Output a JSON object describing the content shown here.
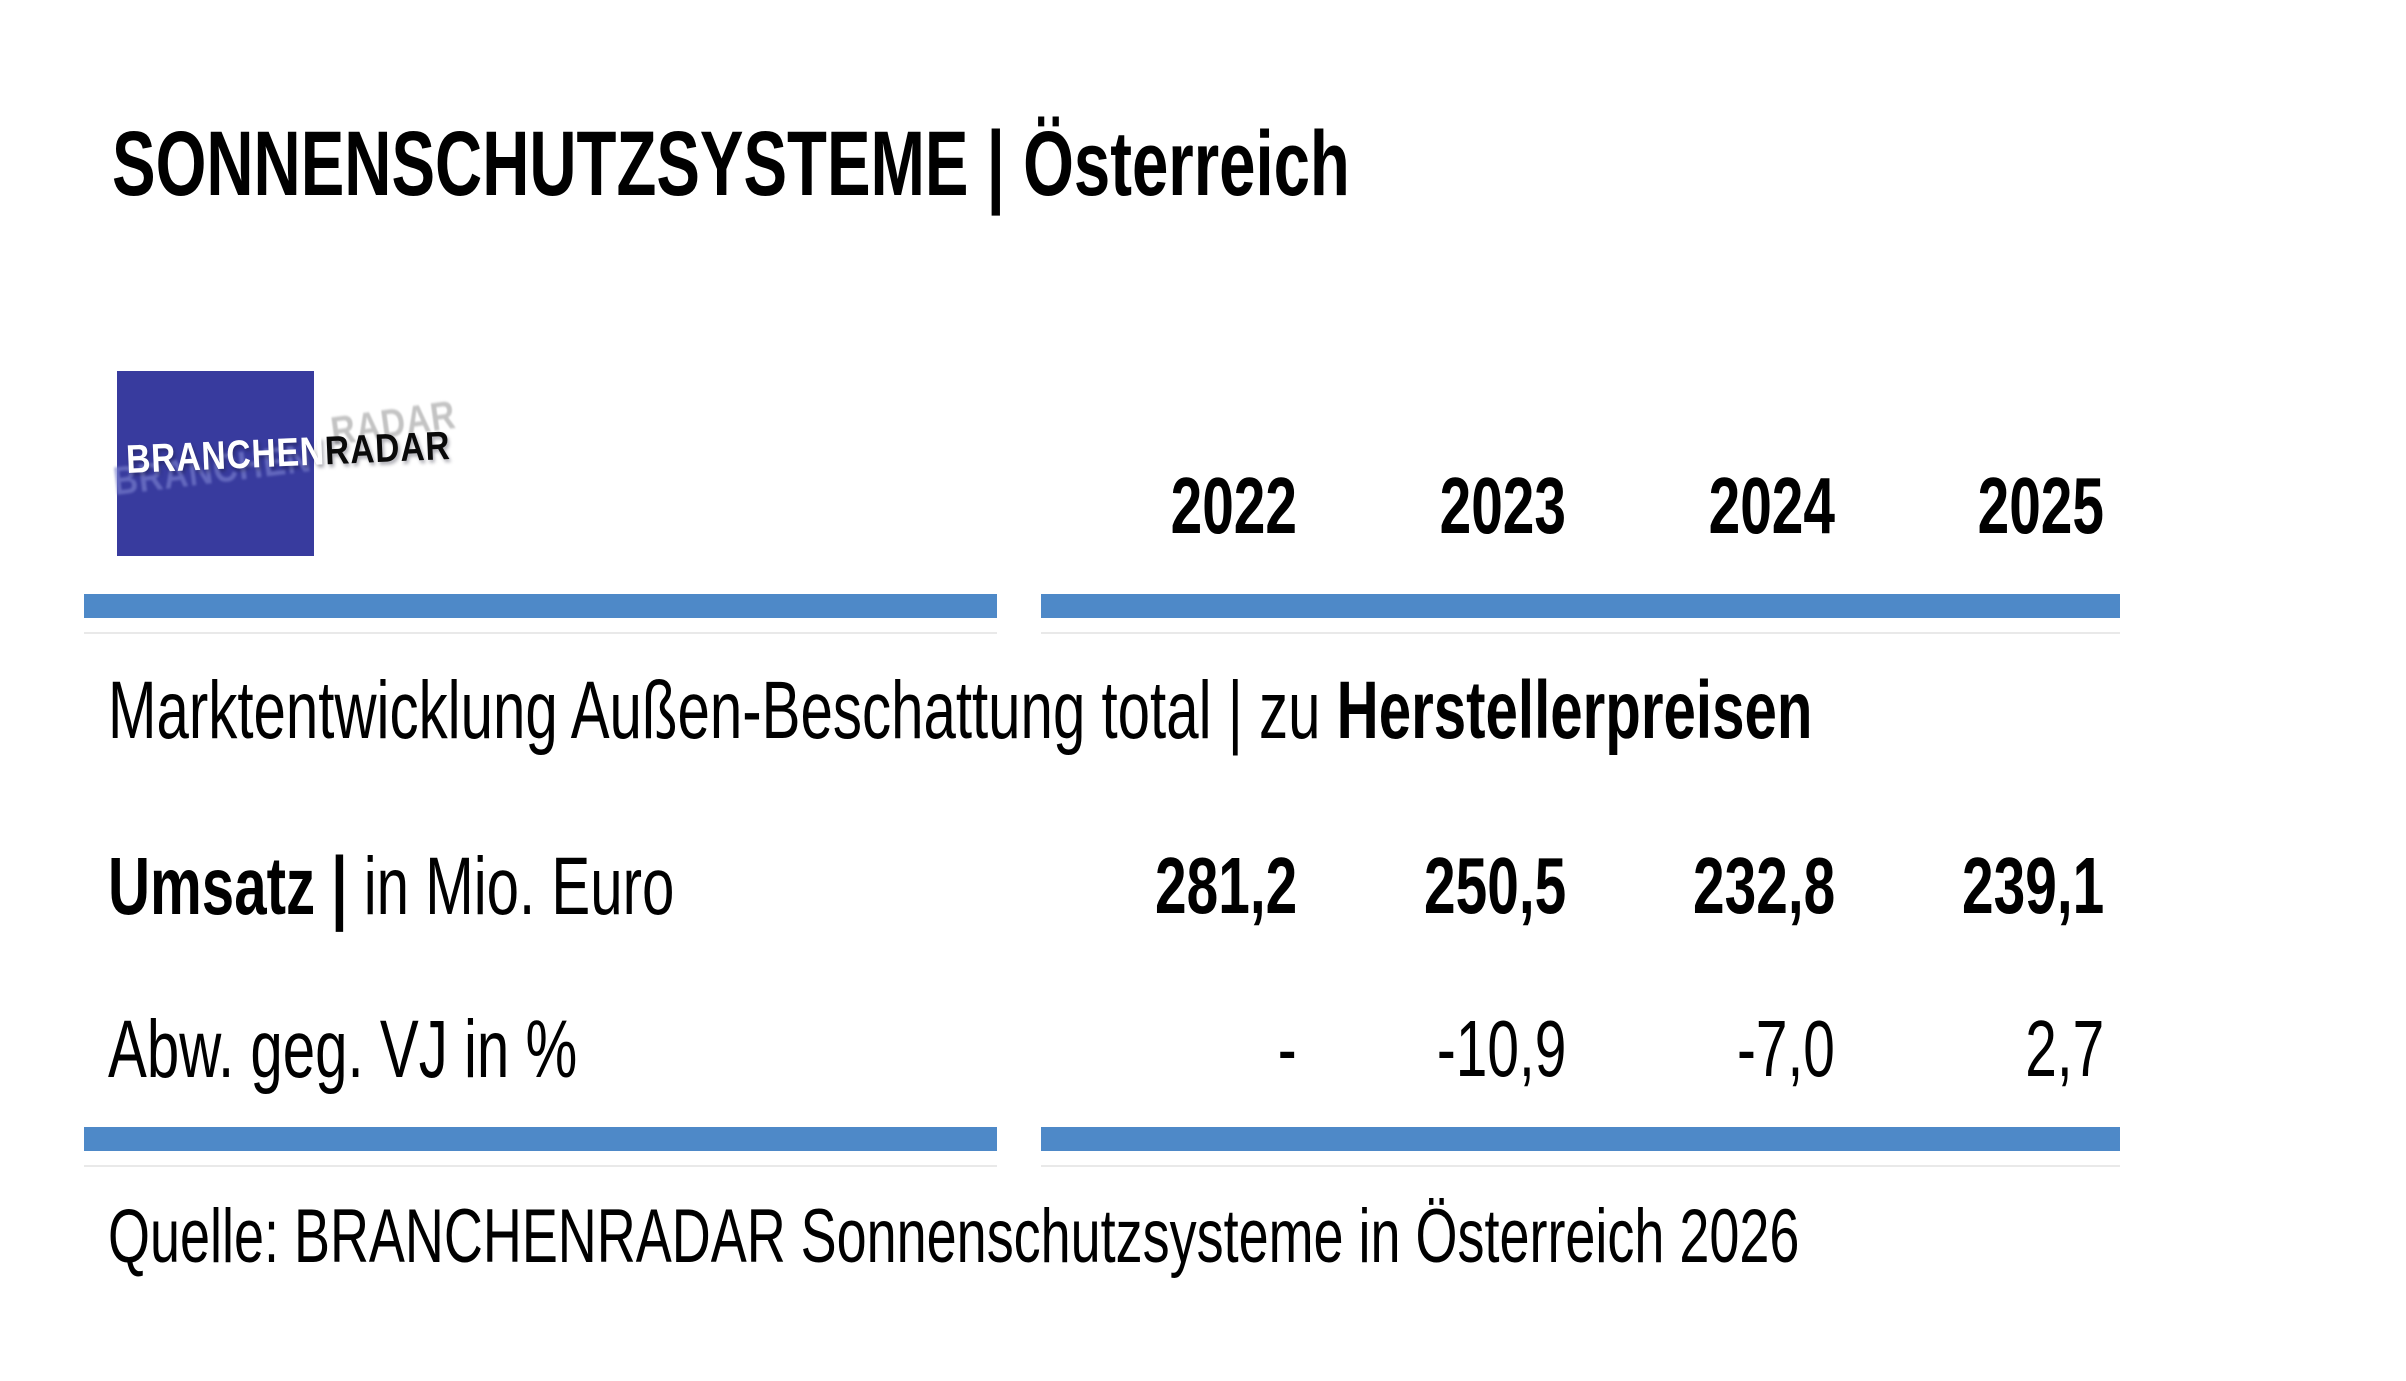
{
  "title": "SONNENSCHUTZSYSTEME | Österreich",
  "logo": {
    "text_left": "BRANCHEN",
    "text_right": "RADAR",
    "ghost_left": "BRANCHEN",
    "ghost_right": "RADAR"
  },
  "colors": {
    "logo_blue": "#383B9E",
    "bar_blue": "#4E89C8"
  },
  "table": {
    "years": [
      "2022",
      "2023",
      "2024",
      "2025"
    ],
    "section_title": {
      "regular": "Marktentwicklung Außen-Beschattung total | zu ",
      "bold": "Herstellerpreisen"
    },
    "rows": [
      {
        "label_bold": "Umsatz | ",
        "label_regular": "in Mio. Euro",
        "values": [
          "281,2",
          "250,5",
          "232,8",
          "239,1"
        ]
      },
      {
        "label_bold": "",
        "label_regular": "Abw. geg. VJ in %",
        "values": [
          "-",
          "-10,9",
          "-7,0",
          "2,7"
        ]
      }
    ]
  },
  "source": "Quelle: BRANCHENRADAR Sonnenschutzsysteme in Österreich 2026",
  "chart_data": {
    "type": "table",
    "title": "SONNENSCHUTZSYSTEME | Österreich",
    "subtitle": "Marktentwicklung Außen-Beschattung total | zu Herstellerpreisen",
    "categories": [
      "2022",
      "2023",
      "2024",
      "2025"
    ],
    "series": [
      {
        "name": "Umsatz | in Mio. Euro",
        "values": [
          281.2,
          250.5,
          232.8,
          239.1
        ]
      },
      {
        "name": "Abw. geg. VJ in %",
        "values": [
          null,
          -10.9,
          -7.0,
          2.7
        ]
      }
    ],
    "source": "Quelle: BRANCHENRADAR Sonnenschutzsysteme in Österreich 2026"
  }
}
